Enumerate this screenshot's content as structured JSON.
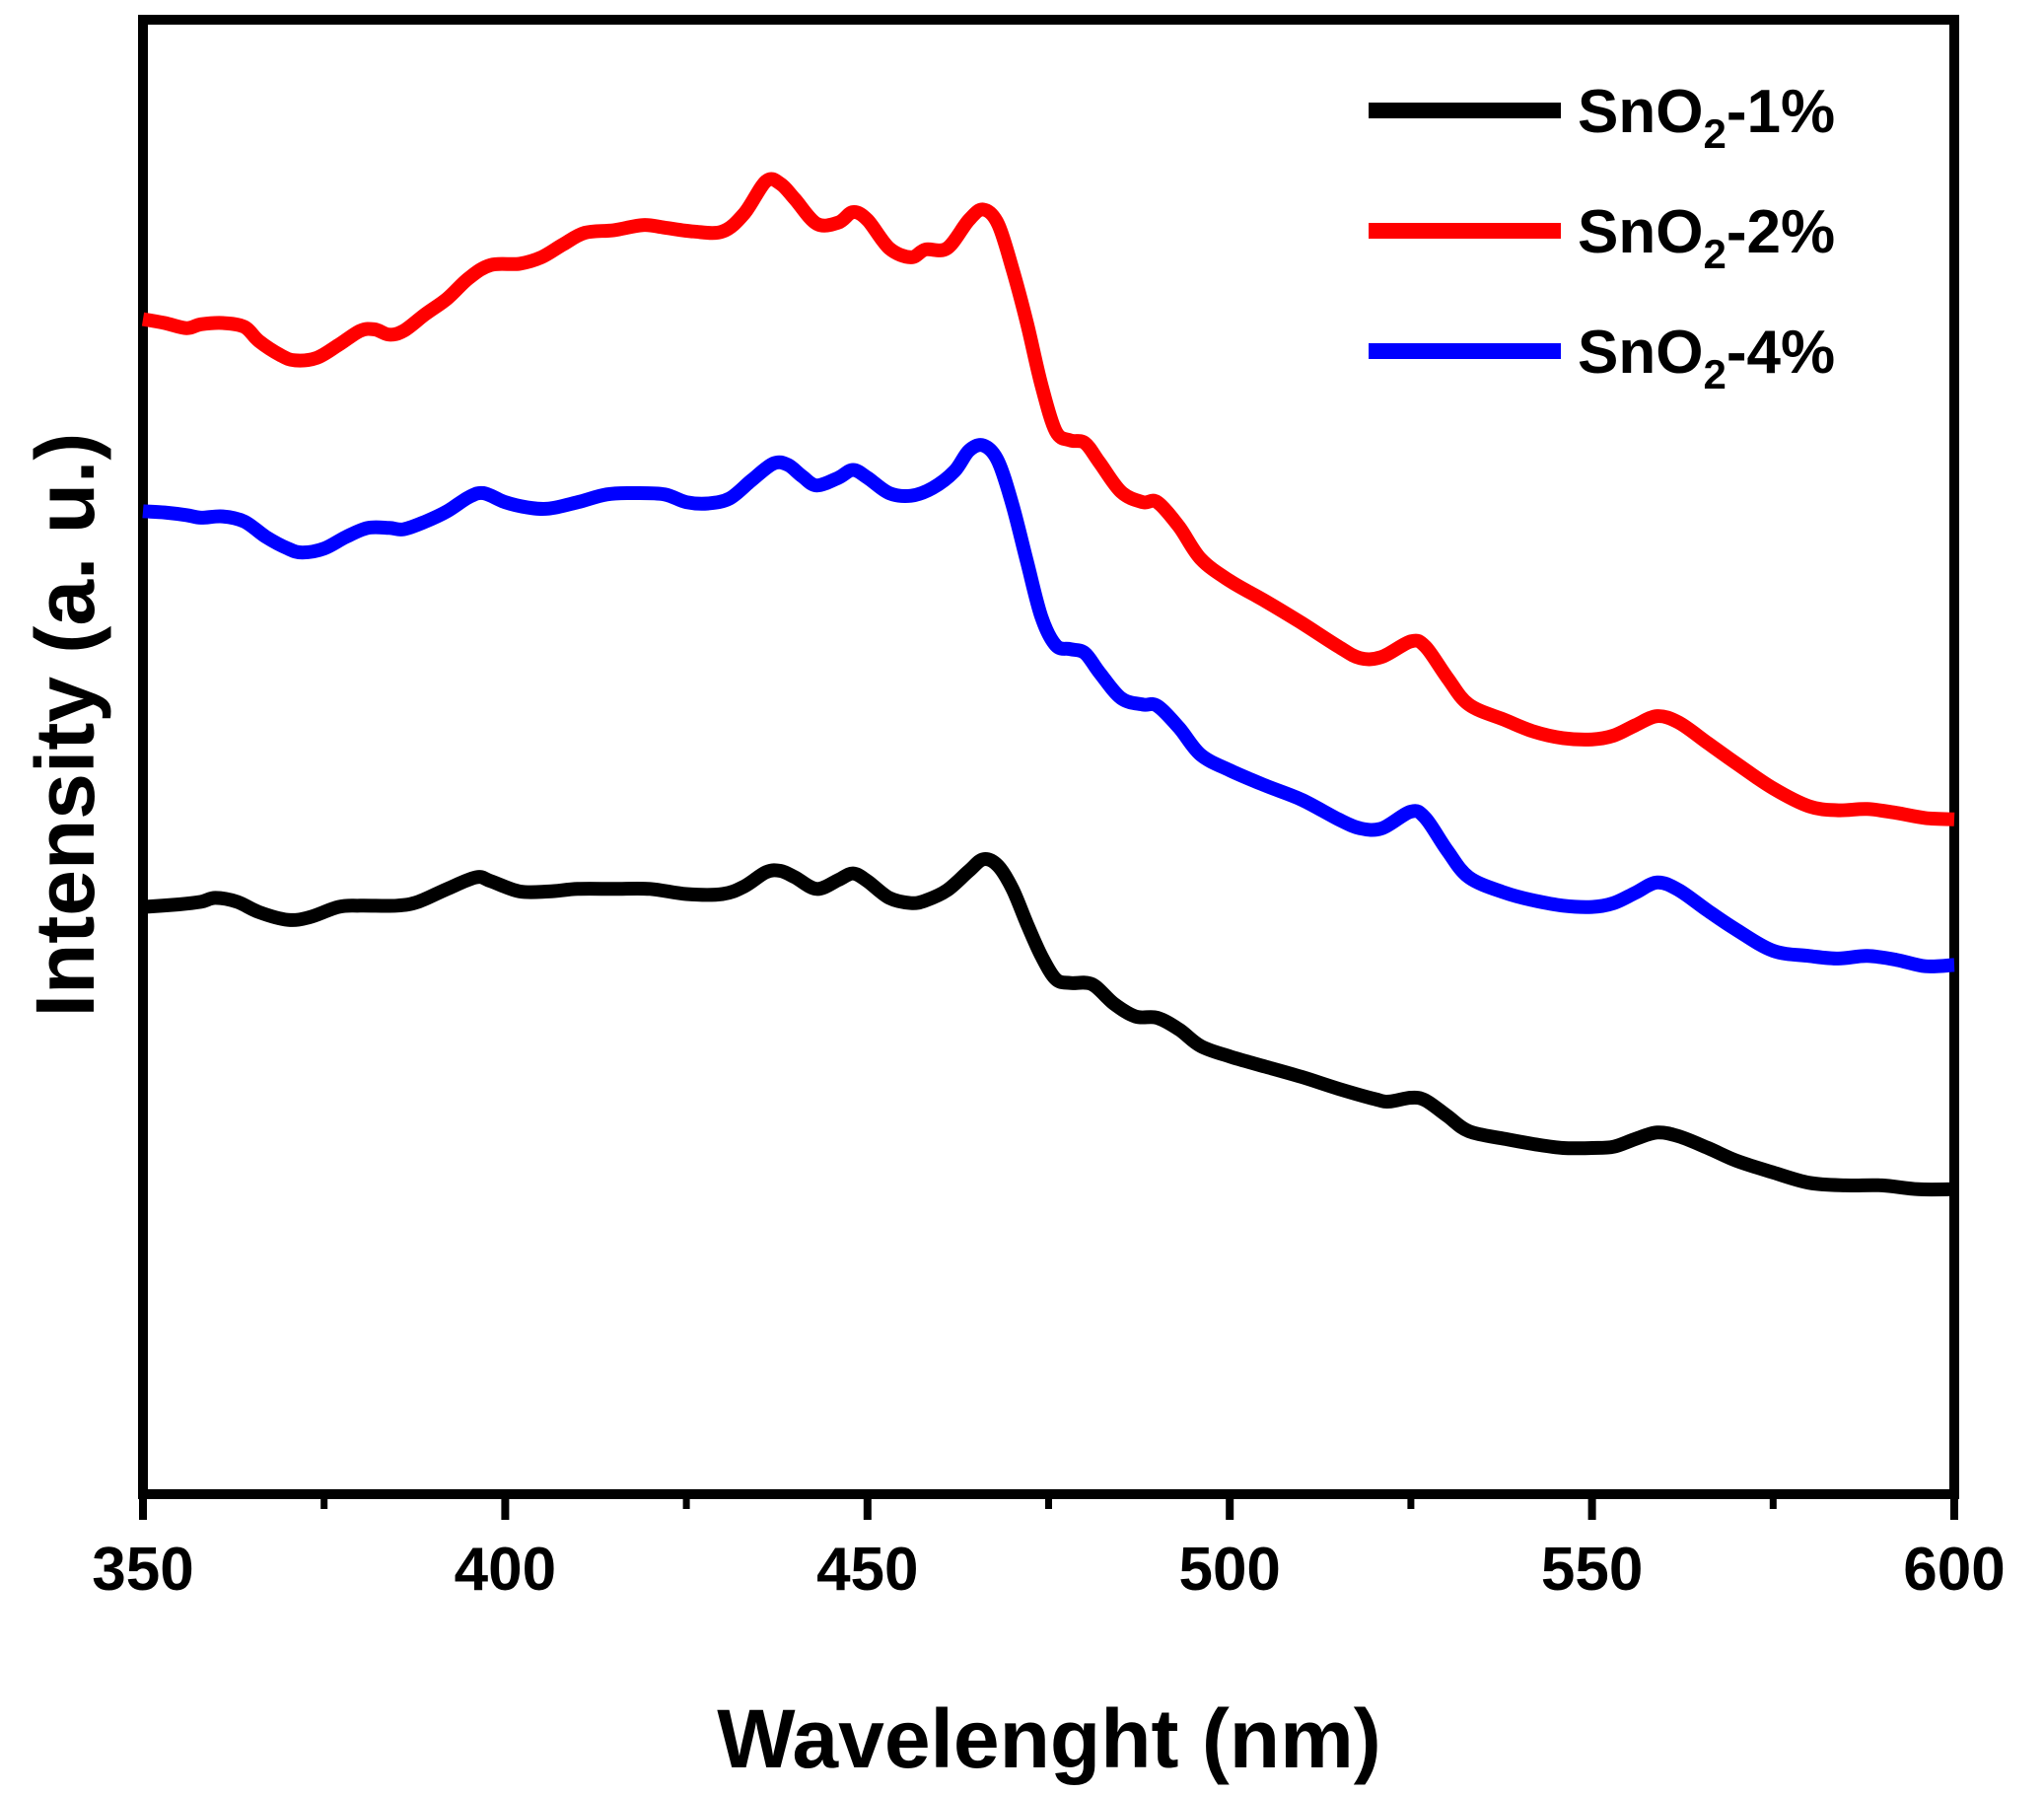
{
  "chart_data": {
    "type": "line",
    "title": "",
    "xlabel": "Wavelenght (nm)",
    "ylabel": "Intensity (a. u.)",
    "xlim": [
      350,
      600
    ],
    "ylim": [
      0,
      100
    ],
    "x_ticks": [
      350,
      400,
      450,
      500,
      550,
      600
    ],
    "x_minor_ticks": [
      375,
      425,
      475,
      525,
      575
    ],
    "x_tick_labels": [
      "350",
      "400",
      "450",
      "500",
      "550",
      "600"
    ],
    "y_ticks_shown": false,
    "grid": false,
    "legend_position": "top-right",
    "series": [
      {
        "name": "SnO2-1%",
        "legend_main": "SnO",
        "legend_sub": "2",
        "legend_suffix": "-1%",
        "color": "#000000",
        "points": [
          [
            350,
            40.2
          ],
          [
            355,
            40.4
          ],
          [
            358,
            40.6
          ],
          [
            360,
            40.9
          ],
          [
            363,
            40.6
          ],
          [
            366,
            39.8
          ],
          [
            370,
            39.2
          ],
          [
            373,
            39.4
          ],
          [
            377,
            40.2
          ],
          [
            380,
            40.3
          ],
          [
            385,
            40.3
          ],
          [
            388,
            40.6
          ],
          [
            392,
            41.6
          ],
          [
            396,
            42.5
          ],
          [
            398,
            42.2
          ],
          [
            402,
            41.4
          ],
          [
            406,
            41.4
          ],
          [
            410,
            41.6
          ],
          [
            415,
            41.6
          ],
          [
            420,
            41.6
          ],
          [
            425,
            41.2
          ],
          [
            430,
            41.2
          ],
          [
            433,
            41.8
          ],
          [
            436,
            42.9
          ],
          [
            438,
            43.0
          ],
          [
            440,
            42.5
          ],
          [
            443,
            41.6
          ],
          [
            446,
            42.3
          ],
          [
            448,
            42.8
          ],
          [
            450,
            42.2
          ],
          [
            453,
            40.9
          ],
          [
            456,
            40.5
          ],
          [
            458,
            40.7
          ],
          [
            461,
            41.5
          ],
          [
            464,
            43.0
          ],
          [
            466,
            43.9
          ],
          [
            468,
            43.4
          ],
          [
            470,
            41.6
          ],
          [
            472,
            38.9
          ],
          [
            474,
            36.4
          ],
          [
            476,
            34.6
          ],
          [
            478,
            34.3
          ],
          [
            481,
            34.2
          ],
          [
            484,
            32.7
          ],
          [
            487,
            31.7
          ],
          [
            490,
            31.6
          ],
          [
            493,
            30.7
          ],
          [
            496,
            29.4
          ],
          [
            500,
            28.6
          ],
          [
            505,
            27.8
          ],
          [
            510,
            27.0
          ],
          [
            515,
            26.1
          ],
          [
            520,
            25.3
          ],
          [
            522,
            25.1
          ],
          [
            525,
            25.4
          ],
          [
            527,
            25.2
          ],
          [
            530,
            24.0
          ],
          [
            533,
            22.8
          ],
          [
            538,
            22.2
          ],
          [
            542,
            21.8
          ],
          [
            546,
            21.5
          ],
          [
            550,
            21.5
          ],
          [
            553,
            21.6
          ],
          [
            556,
            22.2
          ],
          [
            559,
            22.7
          ],
          [
            562,
            22.4
          ],
          [
            566,
            21.5
          ],
          [
            570,
            20.5
          ],
          [
            575,
            19.6
          ],
          [
            580,
            18.8
          ],
          [
            585,
            18.6
          ],
          [
            590,
            18.6
          ],
          [
            595,
            18.3
          ],
          [
            600,
            18.3
          ]
        ]
      },
      {
        "name": "SnO2-2%",
        "legend_main": "SnO",
        "legend_sub": "2",
        "legend_suffix": "-2%",
        "color": "#ff0000",
        "points": [
          [
            350,
            85.8
          ],
          [
            353,
            85.5
          ],
          [
            356,
            85.1
          ],
          [
            358,
            85.4
          ],
          [
            361,
            85.5
          ],
          [
            364,
            85.2
          ],
          [
            366,
            84.1
          ],
          [
            369,
            83.0
          ],
          [
            371,
            82.6
          ],
          [
            374,
            82.8
          ],
          [
            377,
            83.8
          ],
          [
            380,
            84.9
          ],
          [
            382,
            85.0
          ],
          [
            384,
            84.6
          ],
          [
            386,
            84.9
          ],
          [
            389,
            86.2
          ],
          [
            392,
            87.4
          ],
          [
            395,
            89.0
          ],
          [
            398,
            90.0
          ],
          [
            402,
            90.1
          ],
          [
            405,
            90.6
          ],
          [
            408,
            91.6
          ],
          [
            411,
            92.5
          ],
          [
            415,
            92.7
          ],
          [
            419,
            93.1
          ],
          [
            422,
            92.9
          ],
          [
            426,
            92.6
          ],
          [
            430,
            92.6
          ],
          [
            433,
            94.0
          ],
          [
            436,
            96.5
          ],
          [
            438,
            96.3
          ],
          [
            440,
            95.1
          ],
          [
            443,
            93.2
          ],
          [
            446,
            93.3
          ],
          [
            448,
            94.1
          ],
          [
            450,
            93.5
          ],
          [
            453,
            91.3
          ],
          [
            456,
            90.6
          ],
          [
            458,
            91.2
          ],
          [
            461,
            91.3
          ],
          [
            464,
            93.5
          ],
          [
            466,
            94.3
          ],
          [
            468,
            93.2
          ],
          [
            470,
            89.7
          ],
          [
            472,
            85.5
          ],
          [
            474,
            80.7
          ],
          [
            476,
            77.1
          ],
          [
            478,
            76.4
          ],
          [
            480,
            76.2
          ],
          [
            482,
            74.7
          ],
          [
            485,
            72.4
          ],
          [
            488,
            71.6
          ],
          [
            490,
            71.6
          ],
          [
            493,
            69.7
          ],
          [
            496,
            67.2
          ],
          [
            500,
            65.5
          ],
          [
            505,
            63.9
          ],
          [
            510,
            62.2
          ],
          [
            515,
            60.4
          ],
          [
            518,
            59.5
          ],
          [
            521,
            59.6
          ],
          [
            525,
            60.8
          ],
          [
            527,
            60.4
          ],
          [
            530,
            58.0
          ],
          [
            533,
            55.9
          ],
          [
            538,
            54.7
          ],
          [
            542,
            53.8
          ],
          [
            546,
            53.3
          ],
          [
            550,
            53.2
          ],
          [
            553,
            53.5
          ],
          [
            556,
            54.3
          ],
          [
            559,
            55.0
          ],
          [
            562,
            54.5
          ],
          [
            566,
            52.9
          ],
          [
            570,
            51.3
          ],
          [
            575,
            49.4
          ],
          [
            580,
            48.0
          ],
          [
            584,
            47.7
          ],
          [
            588,
            47.8
          ],
          [
            592,
            47.5
          ],
          [
            596,
            47.1
          ],
          [
            600,
            47.0
          ]
        ]
      },
      {
        "name": "SnO2-4%",
        "legend_main": "SnO",
        "legend_sub": "2",
        "legend_suffix": "-4%",
        "color": "#0000ff",
        "points": [
          [
            350,
            70.9
          ],
          [
            353,
            70.8
          ],
          [
            356,
            70.6
          ],
          [
            358,
            70.4
          ],
          [
            361,
            70.5
          ],
          [
            364,
            70.1
          ],
          [
            367,
            68.9
          ],
          [
            370,
            68.0
          ],
          [
            372,
            67.7
          ],
          [
            375,
            68.0
          ],
          [
            378,
            68.9
          ],
          [
            381,
            69.6
          ],
          [
            384,
            69.6
          ],
          [
            386,
            69.5
          ],
          [
            389,
            70.1
          ],
          [
            392,
            70.9
          ],
          [
            395,
            72.0
          ],
          [
            397,
            72.3
          ],
          [
            400,
            71.6
          ],
          [
            403,
            71.2
          ],
          [
            406,
            71.1
          ],
          [
            410,
            71.6
          ],
          [
            414,
            72.2
          ],
          [
            418,
            72.3
          ],
          [
            422,
            72.2
          ],
          [
            425,
            71.6
          ],
          [
            428,
            71.5
          ],
          [
            431,
            71.9
          ],
          [
            434,
            73.3
          ],
          [
            437,
            74.6
          ],
          [
            439,
            74.5
          ],
          [
            441,
            73.6
          ],
          [
            443,
            72.9
          ],
          [
            446,
            73.5
          ],
          [
            448,
            74.1
          ],
          [
            450,
            73.5
          ],
          [
            453,
            72.3
          ],
          [
            456,
            72.1
          ],
          [
            459,
            72.7
          ],
          [
            462,
            74.0
          ],
          [
            464,
            75.6
          ],
          [
            466,
            76.0
          ],
          [
            468,
            74.8
          ],
          [
            470,
            71.4
          ],
          [
            472,
            67.0
          ],
          [
            474,
            62.7
          ],
          [
            476,
            60.5
          ],
          [
            478,
            60.2
          ],
          [
            480,
            59.9
          ],
          [
            482,
            58.4
          ],
          [
            485,
            56.4
          ],
          [
            488,
            55.9
          ],
          [
            490,
            55.8
          ],
          [
            493,
            54.1
          ],
          [
            496,
            52.0
          ],
          [
            500,
            50.8
          ],
          [
            505,
            49.6
          ],
          [
            510,
            48.5
          ],
          [
            515,
            47.0
          ],
          [
            518,
            46.3
          ],
          [
            521,
            46.3
          ],
          [
            525,
            47.6
          ],
          [
            527,
            47.1
          ],
          [
            530,
            44.6
          ],
          [
            533,
            42.5
          ],
          [
            538,
            41.3
          ],
          [
            542,
            40.7
          ],
          [
            546,
            40.3
          ],
          [
            550,
            40.2
          ],
          [
            553,
            40.5
          ],
          [
            556,
            41.3
          ],
          [
            559,
            42.1
          ],
          [
            562,
            41.5
          ],
          [
            566,
            39.9
          ],
          [
            570,
            38.4
          ],
          [
            575,
            36.8
          ],
          [
            580,
            36.4
          ],
          [
            584,
            36.2
          ],
          [
            588,
            36.4
          ],
          [
            592,
            36.1
          ],
          [
            596,
            35.6
          ],
          [
            600,
            35.7
          ]
        ]
      }
    ]
  }
}
